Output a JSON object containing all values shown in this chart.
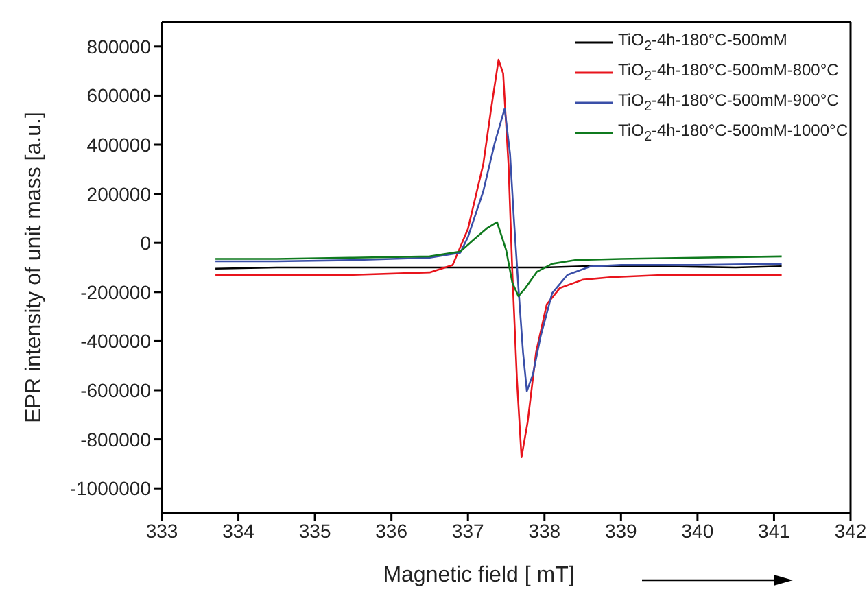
{
  "chart_data": {
    "type": "line",
    "xlabel": "Magnetic field [ mT]",
    "ylabel": "EPR intensity of unit mass [a.u.]",
    "xlim": [
      333,
      342
    ],
    "xticks": [
      333,
      334,
      335,
      336,
      337,
      338,
      339,
      340,
      341,
      342
    ],
    "ylim": [
      -1100000,
      900000
    ],
    "yticks": [
      -1000000,
      -800000,
      -600000,
      -400000,
      -200000,
      0,
      200000,
      400000,
      600000,
      800000
    ],
    "legend": "top right",
    "marker": "none",
    "line_style": "solid",
    "series": [
      {
        "name": "TiO$_{2}$-4h-180°C-500mM",
        "color": "#000000",
        "x": [
          333.7,
          334.5,
          335.5,
          336.5,
          337.0,
          337.5,
          338.0,
          338.5,
          339.5,
          340.5,
          341.1
        ],
        "values": [
          -105000,
          -100000,
          -100000,
          -100000,
          -100000,
          -100000,
          -100000,
          -95000,
          -95000,
          -100000,
          -95000
        ]
      },
      {
        "name": "TiO$_{2}$-4h-180°C-500mM-800°C",
        "color": "#e8141c",
        "x": [
          333.7,
          334.5,
          335.5,
          336.5,
          336.8,
          337.0,
          337.2,
          337.3,
          337.4,
          337.46,
          337.53,
          337.58,
          337.64,
          337.7,
          337.78,
          337.89,
          338.03,
          338.2,
          338.5,
          338.86,
          339.58,
          340.5,
          341.1
        ],
        "values": [
          -130000,
          -130000,
          -130000,
          -120000,
          -90000,
          57000,
          320000,
          540000,
          746000,
          690000,
          320000,
          -118000,
          -555000,
          -873000,
          -730000,
          -446000,
          -250000,
          -184000,
          -150000,
          -140000,
          -130000,
          -130000,
          -130000
        ]
      },
      {
        "name": "TiO$_{2}$-4h-180°C-500mM-900°C",
        "color": "#3a4fa8",
        "x": [
          333.7,
          334.5,
          335.5,
          336.5,
          336.9,
          337.0,
          337.2,
          337.35,
          337.48,
          337.55,
          337.6,
          337.66,
          337.72,
          337.77,
          337.85,
          337.95,
          338.1,
          338.3,
          338.6,
          339.0,
          340.0,
          341.1
        ],
        "values": [
          -75000,
          -75000,
          -70000,
          -60000,
          -40000,
          24000,
          210000,
          407000,
          547000,
          363000,
          100000,
          -184000,
          -446000,
          -604000,
          -534000,
          -380000,
          -205000,
          -130000,
          -96000,
          -90000,
          -90000,
          -85000
        ]
      },
      {
        "name": "TiO$_{2}$-4h-180°C-500mM-1000°C",
        "color": "#0f7a1e",
        "x": [
          333.7,
          334.5,
          335.5,
          336.5,
          336.9,
          337.1,
          337.25,
          337.38,
          337.5,
          337.58,
          337.66,
          337.75,
          337.9,
          338.1,
          338.4,
          339.0,
          340.0,
          341.1
        ],
        "values": [
          -65000,
          -65000,
          -60000,
          -55000,
          -35000,
          20000,
          60000,
          85000,
          -30000,
          -162000,
          -217000,
          -184000,
          -118000,
          -85000,
          -70000,
          -65000,
          -60000,
          -55000
        ]
      }
    ]
  }
}
